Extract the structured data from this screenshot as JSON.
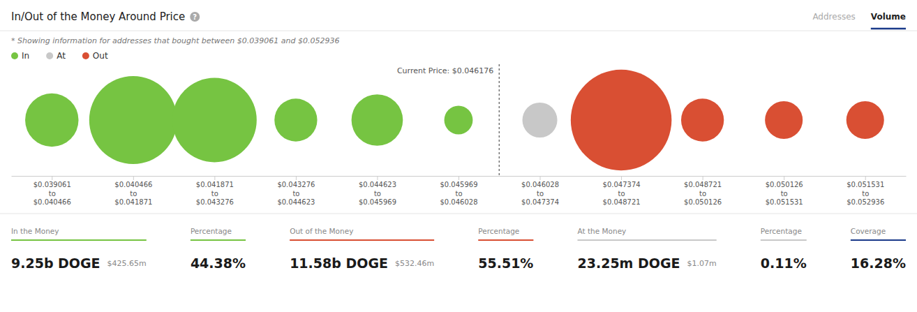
{
  "chart_data": {
    "type": "bubble",
    "title": "In/Out of the Money Around Price",
    "help_icon": "?",
    "subtitle": "* Showing information for addresses that bought between $0.039061 and $0.052936",
    "tabs": [
      {
        "name": "Addresses",
        "active": false
      },
      {
        "name": "Volume",
        "active": true,
        "color": "#1a3a8a"
      }
    ],
    "legend_items": [
      {
        "name": "In",
        "color": "#76c442"
      },
      {
        "name": "At",
        "color": "#c8c8c8"
      },
      {
        "name": "Out",
        "color": "#d94f33"
      }
    ],
    "categories": [
      "$0.039061\nto\n$0.040466",
      "$0.040466\nto\n$0.041871",
      "$0.041871\nto\n$0.043276",
      "$0.043276\nto\n$0.044623",
      "$0.044623\nto\n$0.045969",
      "$0.045969\nto\n$0.046028",
      "$0.046028\nto\n$0.047374",
      "$0.047374\nto\n$0.048721",
      "$0.048721\nto\n$0.050126",
      "$0.050126\nto\n$0.051531",
      "$0.051531\nto\n$0.052936"
    ],
    "sizes": [
      1400,
      3800,
      3500,
      900,
      1300,
      400,
      600,
      5000,
      900,
      700,
      700
    ],
    "colors": [
      "#76c442",
      "#76c442",
      "#76c442",
      "#76c442",
      "#76c442",
      "#76c442",
      "#c8c8c8",
      "#d94f33",
      "#d94f33",
      "#d94f33",
      "#d94f33"
    ],
    "current_price": {
      "label": "Current Price: $0.046176",
      "position": 5.5
    },
    "stats": [
      {
        "label": "In the Money",
        "value": "9.25b DOGE",
        "sub": "$425.65m",
        "color": "#76c442"
      },
      {
        "label": "Percentage",
        "value": "44.38%",
        "color": "#76c442"
      },
      {
        "label": "Out of the Money",
        "value": "11.58b DOGE",
        "sub": "$532.46m",
        "color": "#d94f33"
      },
      {
        "label": "Percentage",
        "value": "55.51%",
        "color": "#d94f33"
      },
      {
        "label": "At the Money",
        "value": "23.25m DOGE",
        "sub": "$1.07m",
        "color": "#c8c8c8"
      },
      {
        "label": "Percentage",
        "value": "0.11%",
        "color": "#c8c8c8"
      },
      {
        "label": "Coverage",
        "value": "16.28%",
        "color": "#1a3a8a"
      }
    ]
  }
}
